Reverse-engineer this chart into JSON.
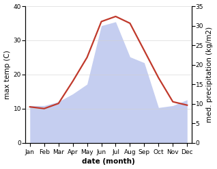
{
  "months": [
    "Jan",
    "Feb",
    "Mar",
    "Apr",
    "May",
    "Jun",
    "Jul",
    "Aug",
    "Sep",
    "Oct",
    "Nov",
    "Dec"
  ],
  "temperature": [
    10.5,
    10.0,
    11.5,
    18.0,
    25.0,
    35.5,
    37.0,
    35.0,
    27.0,
    19.0,
    12.0,
    11.0
  ],
  "precipitation": [
    9.5,
    9.5,
    10.5,
    12.5,
    15.0,
    30.0,
    31.0,
    22.0,
    20.5,
    9.0,
    9.5,
    11.0
  ],
  "temp_color": "#c0392b",
  "precip_fill_color": "#c5cef0",
  "precip_edge_color": "#aab4e8",
  "ylabel_left": "max temp (C)",
  "ylabel_right": "med. precipitation (kg/m2)",
  "xlabel": "date (month)",
  "ylim_left": [
    0,
    40
  ],
  "ylim_right": [
    0,
    35
  ],
  "yticks_left": [
    0,
    10,
    20,
    30,
    40
  ],
  "yticks_right": [
    0,
    5,
    10,
    15,
    20,
    25,
    30,
    35
  ],
  "label_fontsize": 7.5,
  "tick_fontsize": 6.5,
  "line_width": 1.6
}
